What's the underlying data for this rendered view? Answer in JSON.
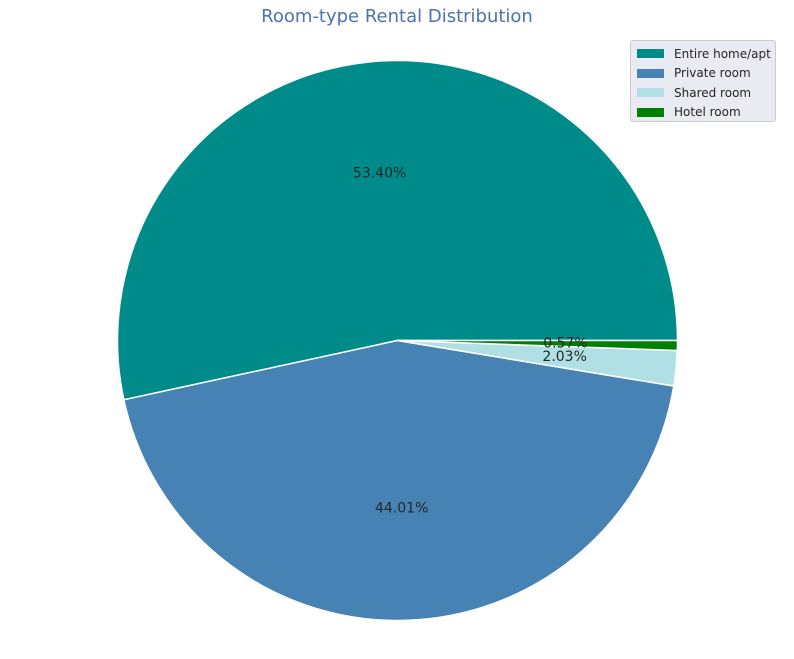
{
  "chart_data": {
    "type": "pie",
    "title": "Room-type Rental Distribution",
    "categories": [
      "Entire home/apt",
      "Private room",
      "Shared room",
      "Hotel room"
    ],
    "values": [
      53.4,
      44.01,
      2.03,
      0.57
    ],
    "labels": [
      "53.40%",
      "44.01%",
      "2.03%",
      "0.57%"
    ],
    "colors": [
      "#008b8b",
      "#4682b4",
      "#b0e0e6",
      "#008000"
    ],
    "start_angle_deg": 0,
    "direction": "counterclockwise",
    "legend_position": "top-right"
  }
}
